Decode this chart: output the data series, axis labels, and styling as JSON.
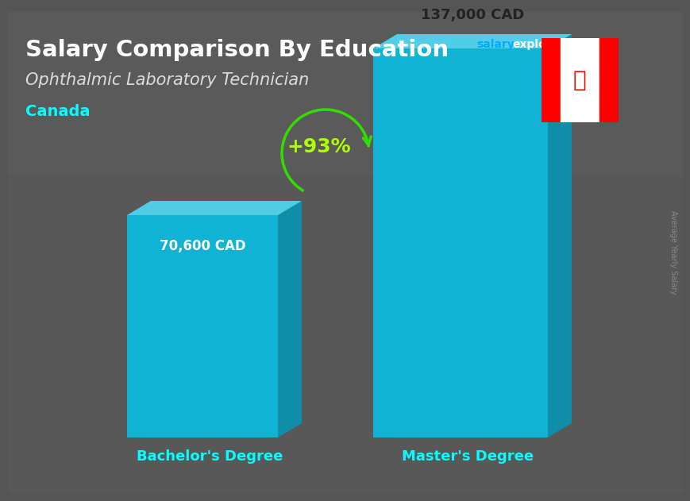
{
  "title": "Salary Comparison By Education",
  "subtitle": "Ophthalmic Laboratory Technician",
  "country": "Canada",
  "categories": [
    "Bachelor's Degree",
    "Master's Degree"
  ],
  "values": [
    70600,
    137000
  ],
  "labels": [
    "70,600 CAD",
    "137,000 CAD"
  ],
  "pct_change": "+93%",
  "bar_color_main": "#00C8F0",
  "bar_color_dark": "#0099BB",
  "bar_color_top": "#50E0FF",
  "bar_alpha": 0.82,
  "ylabel": "Average Yearly Salary",
  "bg_top_color": "#555555",
  "bg_bottom_color": "#444444",
  "title_color": "#FFFFFF",
  "subtitle_color": "#DDDDDD",
  "country_color": "#00FFFF",
  "label_color_bar1": "#FFFFFF",
  "label_color_bar2": "#222222",
  "xlabel_color": "#00FFFF",
  "pct_color": "#AAFF00",
  "arrow_color": "#33DD00",
  "ylabel_color": "#888888",
  "salary_blue": "#00AAFF",
  "website_white": "#FFFFFF"
}
